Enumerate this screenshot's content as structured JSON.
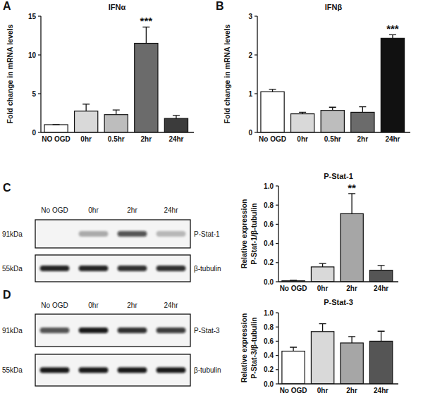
{
  "chart_data": [
    {
      "type": "bar",
      "panel": "A",
      "title": "IFNα",
      "ylabel": [
        "Fold change in mRNA levels"
      ],
      "categories": [
        "NO OGD",
        "0hr",
        "0.5hr",
        "2hr",
        "24hr"
      ],
      "values": [
        1,
        2.75,
        2.3,
        11.5,
        1.8
      ],
      "errors": [
        0.02,
        0.9,
        0.6,
        2.1,
        0.4
      ],
      "colors": [
        "#ffffff",
        "#d9d9d9",
        "#bdbdbd",
        "#6b6b6b",
        "#3b3b3b"
      ],
      "ylim": [
        0,
        15
      ],
      "yticks": [
        0,
        5,
        10,
        15
      ],
      "annotations": [
        {
          "text": "***",
          "x": "2hr"
        }
      ]
    },
    {
      "type": "bar",
      "panel": "B",
      "title": "IFNβ",
      "ylabel": [
        "Fold change in mRNA levels"
      ],
      "categories": [
        "No OGD",
        "0hr",
        "0.5hr",
        "2hr",
        "24hr"
      ],
      "values": [
        1.05,
        0.48,
        0.57,
        0.52,
        2.43
      ],
      "errors": [
        0.06,
        0.04,
        0.08,
        0.14,
        0.09
      ],
      "colors": [
        "#ffffff",
        "#d9d9d9",
        "#bdbdbd",
        "#6b6b6b",
        "#111111"
      ],
      "ylim": [
        0,
        3
      ],
      "yticks": [
        0,
        1,
        2,
        3
      ],
      "annotations": [
        {
          "text": "***",
          "x": "24hr"
        }
      ]
    },
    {
      "type": "bar",
      "panel": "C",
      "title": "P-Stat-1",
      "ylabel": [
        "Relative expression",
        "P-Stat-1/β-tubulin"
      ],
      "categories": [
        "No OGD",
        "0hr",
        "2hr",
        "24hr"
      ],
      "values": [
        0.01,
        0.155,
        0.71,
        0.12
      ],
      "errors": [
        0.005,
        0.035,
        0.21,
        0.05
      ],
      "colors": [
        "#ffffff",
        "#d9d9d9",
        "#a6a6a6",
        "#555555"
      ],
      "ylim": [
        0,
        1
      ],
      "yticks": [
        {
          "value": 0,
          "label": "0.0"
        },
        0.2,
        0.4,
        0.6,
        0.8,
        {
          "value": 1,
          "label": "1.0"
        }
      ],
      "annotations": [
        {
          "text": "**",
          "x": "2hr"
        }
      ]
    },
    {
      "type": "bar",
      "panel": "D",
      "title": "P-Stat-3",
      "ylabel": [
        "Relative expression",
        "P-Stat-3/β-tubulin"
      ],
      "categories": [
        "No OGD",
        "0hr",
        "2hr",
        "24hr"
      ],
      "values": [
        0.46,
        0.735,
        0.575,
        0.6
      ],
      "errors": [
        0.055,
        0.11,
        0.09,
        0.14
      ],
      "colors": [
        "#ffffff",
        "#d9d9d9",
        "#a6a6a6",
        "#555555"
      ],
      "ylim": [
        0,
        1
      ],
      "yticks": [
        {
          "value": 0,
          "label": "0.0"
        },
        0.2,
        0.4,
        0.6,
        0.8,
        {
          "value": 1,
          "label": "1.0"
        }
      ]
    }
  ],
  "blots": [
    {
      "lanes": [
        "No OGD",
        "0hr",
        "2hr",
        "24hr"
      ],
      "rows": [
        {
          "size": "91kDa",
          "protein": "P-Stat-1",
          "intensity": [
            0,
            0.3,
            0.7,
            0.25
          ]
        },
        {
          "size": "55kDa",
          "protein": "β-tubulin",
          "intensity": [
            0.9,
            0.9,
            0.85,
            0.85
          ]
        }
      ]
    },
    {
      "lanes": [
        "No OGD",
        "0hr",
        "2hr",
        "24hr"
      ],
      "rows": [
        {
          "size": "91kDa",
          "protein": "P-Stat-3",
          "intensity": [
            0.7,
            0.95,
            0.85,
            0.8
          ]
        },
        {
          "size": "55kDa",
          "protein": "β-tubulin",
          "intensity": [
            0.95,
            0.95,
            0.95,
            0.95
          ]
        }
      ]
    }
  ]
}
